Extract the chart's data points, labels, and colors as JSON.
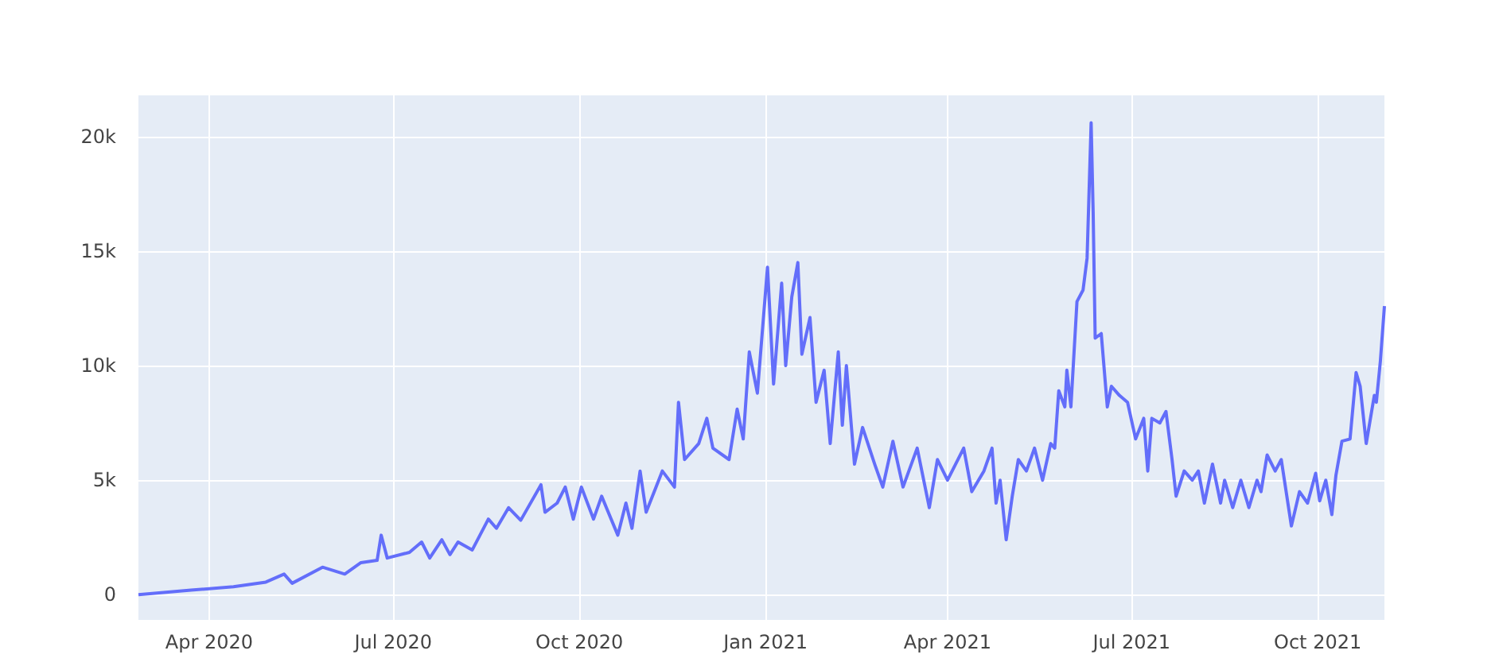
{
  "chart_data": {
    "type": "line",
    "x": [
      "2020-02-26",
      "2020-03-23",
      "2020-04-13",
      "2020-04-29",
      "2020-05-08",
      "2020-05-12",
      "2020-05-27",
      "2020-06-07",
      "2020-06-15",
      "2020-06-23",
      "2020-06-25",
      "2020-06-28",
      "2020-07-09",
      "2020-07-15",
      "2020-07-19",
      "2020-07-25",
      "2020-07-29",
      "2020-08-02",
      "2020-08-09",
      "2020-08-17",
      "2020-08-21",
      "2020-08-27",
      "2020-09-02",
      "2020-09-12",
      "2020-09-14",
      "2020-09-20",
      "2020-09-24",
      "2020-09-28",
      "2020-10-02",
      "2020-10-08",
      "2020-10-12",
      "2020-10-20",
      "2020-10-24",
      "2020-10-27",
      "2020-10-31",
      "2020-11-03",
      "2020-11-11",
      "2020-11-17",
      "2020-11-19",
      "2020-11-22",
      "2020-11-29",
      "2020-12-03",
      "2020-12-06",
      "2020-12-14",
      "2020-12-18",
      "2020-12-21",
      "2020-12-24",
      "2020-12-28",
      "2021-01-02",
      "2021-01-05",
      "2021-01-09",
      "2021-01-11",
      "2021-01-14",
      "2021-01-17",
      "2021-01-19",
      "2021-01-23",
      "2021-01-26",
      "2021-01-30",
      "2021-02-02",
      "2021-02-06",
      "2021-02-08",
      "2021-02-10",
      "2021-02-14",
      "2021-02-18",
      "2021-02-24",
      "2021-02-28",
      "2021-03-05",
      "2021-03-10",
      "2021-03-17",
      "2021-03-23",
      "2021-03-27",
      "2021-04-01",
      "2021-04-09",
      "2021-04-13",
      "2021-04-19",
      "2021-04-23",
      "2021-04-25",
      "2021-04-27",
      "2021-04-30",
      "2021-05-03",
      "2021-05-06",
      "2021-05-10",
      "2021-05-14",
      "2021-05-18",
      "2021-05-22",
      "2021-05-24",
      "2021-05-26",
      "2021-05-29",
      "2021-05-30",
      "2021-06-01",
      "2021-06-04",
      "2021-06-07",
      "2021-06-09",
      "2021-06-11",
      "2021-06-12",
      "2021-06-13",
      "2021-06-16",
      "2021-06-19",
      "2021-06-21",
      "2021-06-25",
      "2021-06-29",
      "2021-07-03",
      "2021-07-07",
      "2021-07-09",
      "2021-07-11",
      "2021-07-15",
      "2021-07-18",
      "2021-07-21",
      "2021-07-23",
      "2021-07-27",
      "2021-07-31",
      "2021-08-03",
      "2021-08-06",
      "2021-08-10",
      "2021-08-14",
      "2021-08-16",
      "2021-08-20",
      "2021-08-24",
      "2021-08-28",
      "2021-09-01",
      "2021-09-03",
      "2021-09-06",
      "2021-09-10",
      "2021-09-13",
      "2021-09-18",
      "2021-09-22",
      "2021-09-26",
      "2021-09-30",
      "2021-10-02",
      "2021-10-05",
      "2021-10-08",
      "2021-10-10",
      "2021-10-13",
      "2021-10-17",
      "2021-10-20",
      "2021-10-22",
      "2021-10-25",
      "2021-10-29",
      "2021-10-30",
      "2021-11-01",
      "2021-11-03"
    ],
    "series": [
      {
        "color": "#636efa",
        "values": [
          0,
          200,
          350,
          550,
          900,
          500,
          1200,
          900,
          1400,
          1500,
          2600,
          1600,
          1850,
          2300,
          1600,
          2400,
          1750,
          2300,
          1950,
          3300,
          2900,
          3800,
          3250,
          4800,
          3600,
          4000,
          4700,
          3300,
          4700,
          3300,
          4300,
          2600,
          4000,
          2900,
          5400,
          3600,
          5400,
          4700,
          8400,
          5900,
          6600,
          7700,
          6400,
          5900,
          8100,
          6800,
          10600,
          8800,
          14300,
          9200,
          13600,
          10000,
          13000,
          14500,
          10500,
          12100,
          8400,
          9800,
          6600,
          10600,
          7400,
          10000,
          5700,
          7300,
          5700,
          4700,
          6700,
          4700,
          6400,
          3800,
          5900,
          5000,
          6400,
          4500,
          5400,
          6400,
          4000,
          5000,
          2400,
          4300,
          5900,
          5400,
          6400,
          5000,
          6600,
          6400,
          8900,
          8200,
          9800,
          8200,
          12800,
          13300,
          14700,
          20600,
          16700,
          11200,
          11400,
          8200,
          9100,
          8700,
          8400,
          6800,
          7700,
          5400,
          7700,
          7500,
          8000,
          5900,
          4300,
          5400,
          5000,
          5400,
          4000,
          5700,
          4000,
          5000,
          3800,
          5000,
          3800,
          5000,
          4500,
          6100,
          5400,
          5900,
          3000,
          4500,
          4000,
          5300,
          4100,
          5000,
          3500,
          5200,
          6700,
          6800,
          9700,
          9100,
          6600,
          8700,
          8400,
          10200,
          12600
        ]
      }
    ],
    "xlim": [
      "2020-02-26",
      "2021-11-03"
    ],
    "xticks": [
      {
        "value": "2020-04-01",
        "label": "Apr 2020"
      },
      {
        "value": "2020-07-01",
        "label": "Jul 2020"
      },
      {
        "value": "2020-10-01",
        "label": "Oct 2020"
      },
      {
        "value": "2021-01-01",
        "label": "Jan 2021"
      },
      {
        "value": "2021-04-01",
        "label": "Apr 2021"
      },
      {
        "value": "2021-07-01",
        "label": "Jul 2021"
      },
      {
        "value": "2021-10-01",
        "label": "Oct 2021"
      }
    ],
    "ylim": [
      -1100,
      21800
    ],
    "yticks": [
      {
        "value": 0,
        "label": "0"
      },
      {
        "value": 5000,
        "label": "5k"
      },
      {
        "value": 10000,
        "label": "10k"
      },
      {
        "value": 15000,
        "label": "15k"
      },
      {
        "value": 20000,
        "label": "20k"
      }
    ],
    "grid": true
  }
}
